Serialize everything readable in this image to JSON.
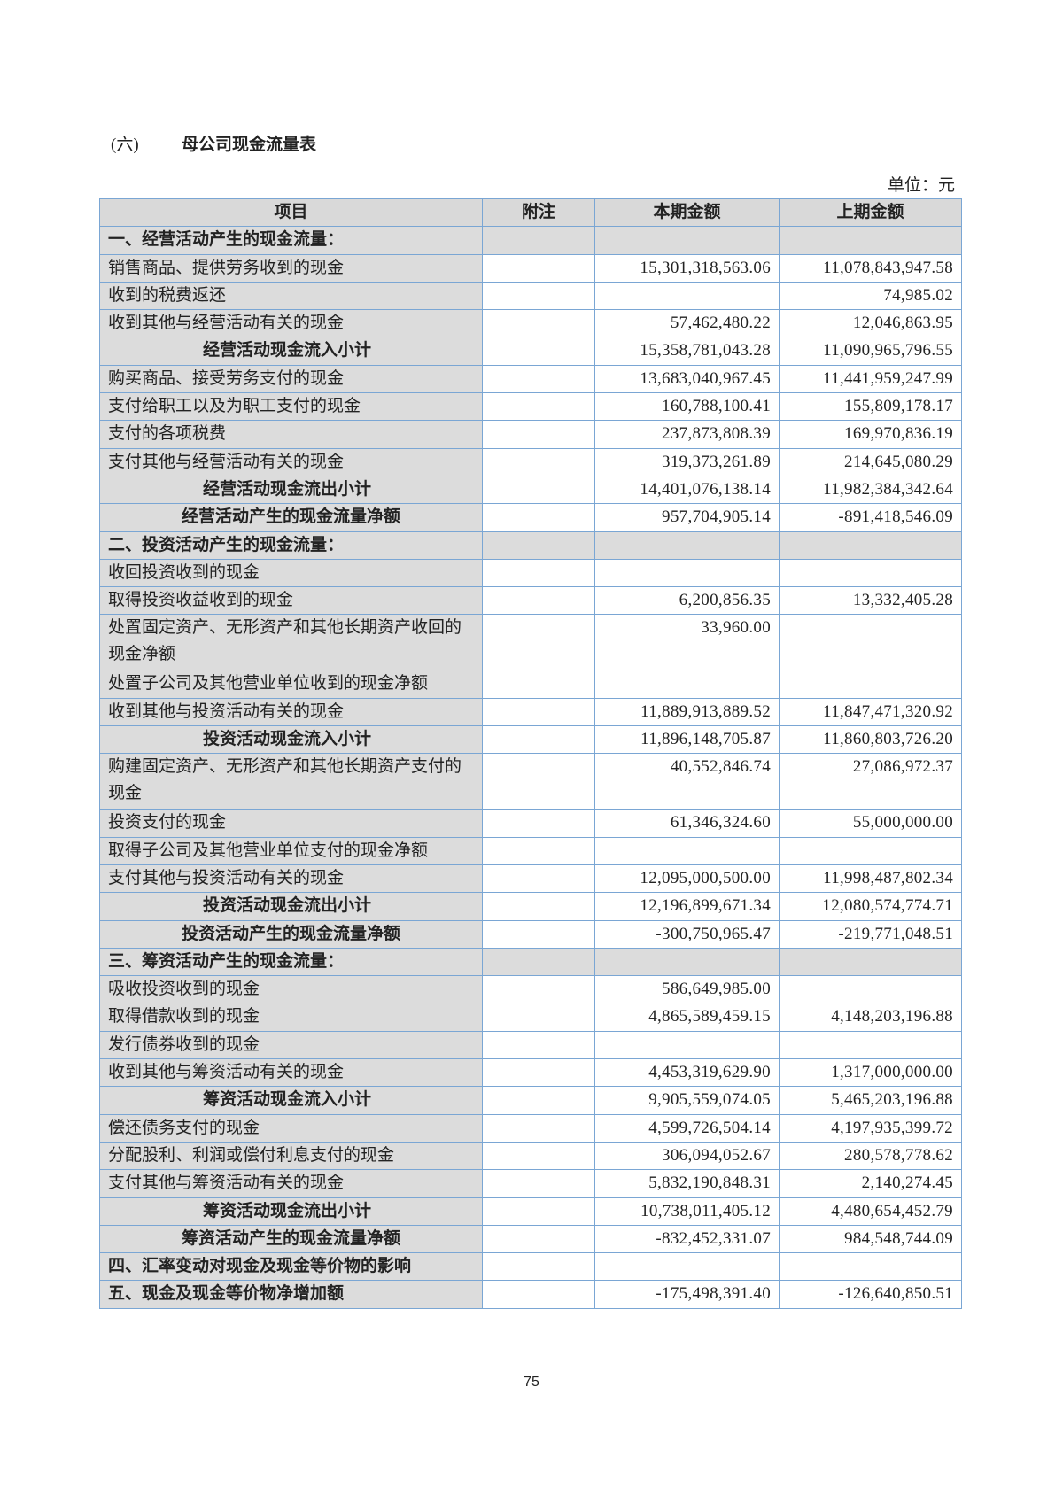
{
  "title": {
    "number": "(六)",
    "text": "母公司现金流量表"
  },
  "unit": "单位：元",
  "columns": [
    "项目",
    "附注",
    "本期金额",
    "上期金额"
  ],
  "rows": [
    {
      "type": "section",
      "item": "一、经营活动产生的现金流量：",
      "note": "",
      "current": "",
      "prior": ""
    },
    {
      "type": "line",
      "item": "销售商品、提供劳务收到的现金",
      "note": "",
      "current": "15,301,318,563.06",
      "prior": "11,078,843,947.58"
    },
    {
      "type": "line",
      "item": "收到的税费返还",
      "note": "",
      "current": "",
      "prior": "74,985.02"
    },
    {
      "type": "line",
      "item": "收到其他与经营活动有关的现金",
      "note": "",
      "current": "57,462,480.22",
      "prior": "12,046,863.95"
    },
    {
      "type": "sub",
      "item": "经营活动现金流入小计",
      "note": "",
      "current": "15,358,781,043.28",
      "prior": "11,090,965,796.55"
    },
    {
      "type": "line",
      "item": "购买商品、接受劳务支付的现金",
      "note": "",
      "current": "13,683,040,967.45",
      "prior": "11,441,959,247.99"
    },
    {
      "type": "line",
      "item": "支付给职工以及为职工支付的现金",
      "note": "",
      "current": "160,788,100.41",
      "prior": "155,809,178.17"
    },
    {
      "type": "line",
      "item": "支付的各项税费",
      "note": "",
      "current": "237,873,808.39",
      "prior": "169,970,836.19"
    },
    {
      "type": "line",
      "item": "支付其他与经营活动有关的现金",
      "note": "",
      "current": "319,373,261.89",
      "prior": "214,645,080.29"
    },
    {
      "type": "sub",
      "item": "经营活动现金流出小计",
      "note": "",
      "current": "14,401,076,138.14",
      "prior": "11,982,384,342.64"
    },
    {
      "type": "net",
      "item": "经营活动产生的现金流量净额",
      "note": "",
      "current": "957,704,905.14",
      "prior": "-891,418,546.09"
    },
    {
      "type": "section",
      "item": "二、投资活动产生的现金流量：",
      "note": "",
      "current": "",
      "prior": ""
    },
    {
      "type": "line",
      "item": "收回投资收到的现金",
      "note": "",
      "current": "",
      "prior": ""
    },
    {
      "type": "line",
      "item": "取得投资收益收到的现金",
      "note": "",
      "current": "6,200,856.35",
      "prior": "13,332,405.28"
    },
    {
      "type": "dbl",
      "item": "处置固定资产、无形资产和其他长期资产收回的现金净额",
      "note": "",
      "current": "33,960.00",
      "prior": ""
    },
    {
      "type": "line",
      "item": "处置子公司及其他营业单位收到的现金净额",
      "note": "",
      "current": "",
      "prior": ""
    },
    {
      "type": "line",
      "item": "收到其他与投资活动有关的现金",
      "note": "",
      "current": "11,889,913,889.52",
      "prior": "11,847,471,320.92"
    },
    {
      "type": "sub",
      "item": "投资活动现金流入小计",
      "note": "",
      "current": "11,896,148,705.87",
      "prior": "11,860,803,726.20"
    },
    {
      "type": "dbl",
      "item": "购建固定资产、无形资产和其他长期资产支付的现金",
      "note": "",
      "current": "40,552,846.74",
      "prior": "27,086,972.37"
    },
    {
      "type": "line",
      "item": "投资支付的现金",
      "note": "",
      "current": "61,346,324.60",
      "prior": "55,000,000.00"
    },
    {
      "type": "line",
      "item": "取得子公司及其他营业单位支付的现金净额",
      "note": "",
      "current": "",
      "prior": ""
    },
    {
      "type": "line",
      "item": "支付其他与投资活动有关的现金",
      "note": "",
      "current": "12,095,000,500.00",
      "prior": "11,998,487,802.34"
    },
    {
      "type": "sub",
      "item": "投资活动现金流出小计",
      "note": "",
      "current": "12,196,899,671.34",
      "prior": "12,080,574,774.71"
    },
    {
      "type": "net",
      "item": "投资活动产生的现金流量净额",
      "note": "",
      "current": "-300,750,965.47",
      "prior": "-219,771,048.51"
    },
    {
      "type": "section",
      "item": "三、筹资活动产生的现金流量：",
      "note": "",
      "current": "",
      "prior": ""
    },
    {
      "type": "line",
      "item": "吸收投资收到的现金",
      "note": "",
      "current": "586,649,985.00",
      "prior": ""
    },
    {
      "type": "line",
      "item": "取得借款收到的现金",
      "note": "",
      "current": "4,865,589,459.15",
      "prior": "4,148,203,196.88"
    },
    {
      "type": "line",
      "item": "发行债券收到的现金",
      "note": "",
      "current": "",
      "prior": ""
    },
    {
      "type": "line",
      "item": "收到其他与筹资活动有关的现金",
      "note": "",
      "current": "4,453,319,629.90",
      "prior": "1,317,000,000.00"
    },
    {
      "type": "sub",
      "item": "筹资活动现金流入小计",
      "note": "",
      "current": "9,905,559,074.05",
      "prior": "5,465,203,196.88"
    },
    {
      "type": "line",
      "item": "偿还债务支付的现金",
      "note": "",
      "current": "4,599,726,504.14",
      "prior": "4,197,935,399.72"
    },
    {
      "type": "line",
      "item": "分配股利、利润或偿付利息支付的现金",
      "note": "",
      "current": "306,094,052.67",
      "prior": "280,578,778.62"
    },
    {
      "type": "line",
      "item": "支付其他与筹资活动有关的现金",
      "note": "",
      "current": "5,832,190,848.31",
      "prior": "2,140,274.45"
    },
    {
      "type": "sub",
      "item": "筹资活动现金流出小计",
      "note": "",
      "current": "10,738,011,405.12",
      "prior": "4,480,654,452.79"
    },
    {
      "type": "net",
      "item": "筹资活动产生的现金流量净额",
      "note": "",
      "current": "-832,452,331.07",
      "prior": "984,548,744.09"
    },
    {
      "type": "total",
      "item": "四、汇率变动对现金及现金等价物的影响",
      "note": "",
      "current": "",
      "prior": ""
    },
    {
      "type": "total",
      "item": "五、现金及现金等价物净增加额",
      "note": "",
      "current": "-175,498,391.40",
      "prior": "-126,640,850.51"
    }
  ],
  "page_number": "75"
}
